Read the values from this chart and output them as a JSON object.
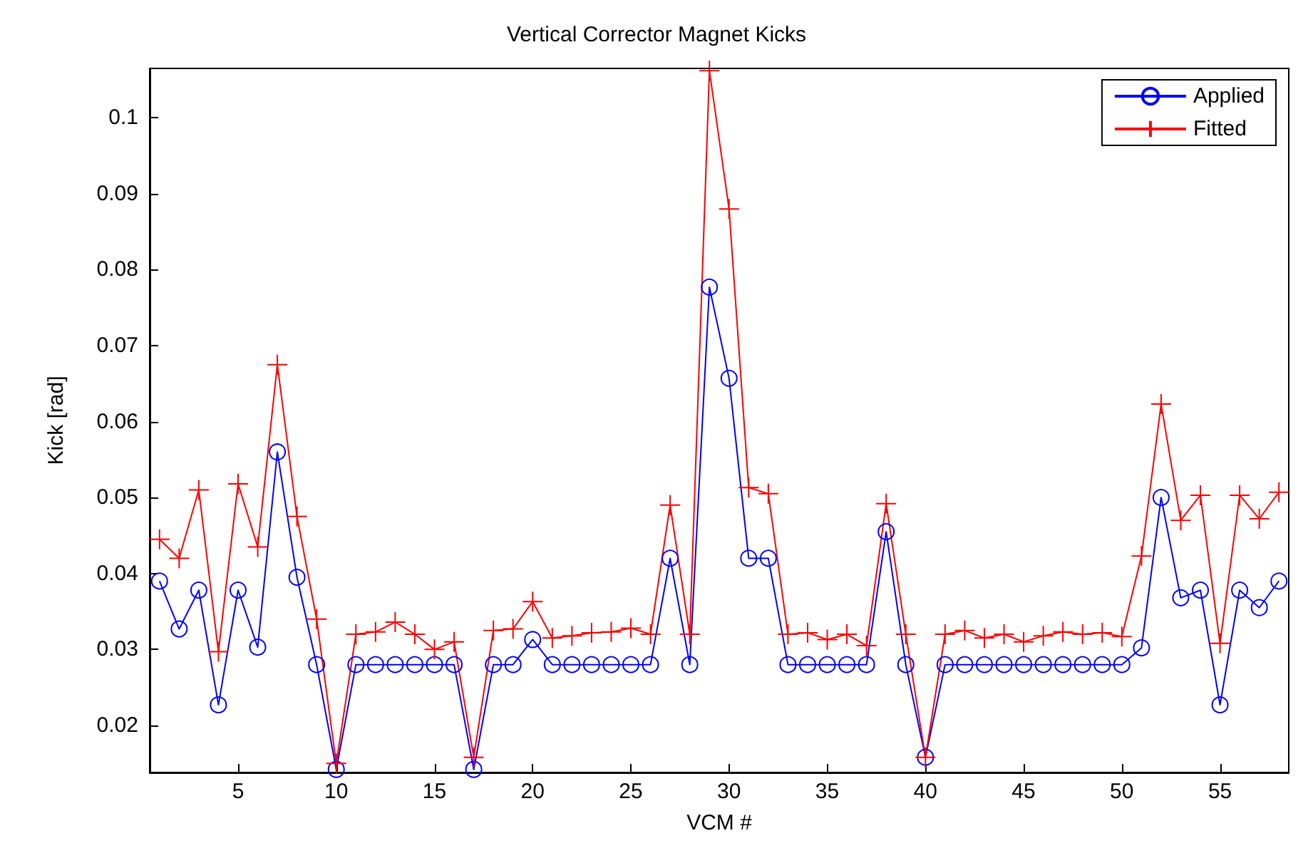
{
  "chart_data": {
    "type": "line",
    "title": "Vertical Corrector Magnet Kicks",
    "xlabel": "VCM #",
    "ylabel": "Kick [rad]",
    "x": [
      1,
      2,
      3,
      4,
      5,
      6,
      7,
      8,
      9,
      10,
      11,
      12,
      13,
      14,
      15,
      16,
      17,
      18,
      19,
      20,
      21,
      22,
      23,
      24,
      25,
      26,
      27,
      28,
      29,
      30,
      31,
      32,
      33,
      34,
      35,
      36,
      37,
      38,
      39,
      40,
      41,
      42,
      43,
      44,
      45,
      46,
      47,
      48,
      49,
      50,
      51,
      52,
      53,
      54,
      55,
      56,
      57,
      58
    ],
    "series": [
      {
        "name": "Applied",
        "color": "#0000ff",
        "marker": "circle",
        "values": [
          0.039,
          0.0327,
          0.0378,
          0.0227,
          0.0378,
          0.0303,
          0.056,
          0.0395,
          0.028,
          0.0142,
          0.028,
          0.028,
          0.028,
          0.028,
          0.028,
          0.028,
          0.0142,
          0.028,
          0.028,
          0.0313,
          0.028,
          0.028,
          0.028,
          0.028,
          0.028,
          0.028,
          0.042,
          0.028,
          0.0777,
          0.0657,
          0.042,
          0.042,
          0.028,
          0.028,
          0.028,
          0.028,
          0.028,
          0.0455,
          0.028,
          0.0158,
          0.028,
          0.028,
          0.028,
          0.028,
          0.028,
          0.028,
          0.028,
          0.028,
          0.028,
          0.028,
          0.0302,
          0.05,
          0.0368,
          0.0378,
          0.0227,
          0.0378,
          0.0355,
          0.039
        ]
      },
      {
        "name": "Fitted",
        "color": "#ff0000",
        "marker": "cross",
        "values": [
          0.0445,
          0.042,
          0.051,
          0.0297,
          0.0518,
          0.0435,
          0.0675,
          0.0475,
          0.034,
          0.015,
          0.032,
          0.0323,
          0.0336,
          0.032,
          0.03,
          0.031,
          0.0158,
          0.0325,
          0.0327,
          0.0363,
          0.0315,
          0.0318,
          0.0322,
          0.0323,
          0.0328,
          0.032,
          0.049,
          0.032,
          0.1062,
          0.088,
          0.0513,
          0.0505,
          0.032,
          0.0322,
          0.0313,
          0.032,
          0.0305,
          0.0492,
          0.032,
          0.0158,
          0.032,
          0.0325,
          0.0315,
          0.032,
          0.031,
          0.0318,
          0.0323,
          0.032,
          0.0322,
          0.0317,
          0.0423,
          0.0623,
          0.047,
          0.0503,
          0.0308,
          0.0503,
          0.0472,
          0.0507
        ]
      }
    ],
    "xlim": [
      0.5,
      58.5
    ],
    "ylim": [
      0.0138,
      0.1065
    ],
    "xticks": [
      5,
      10,
      15,
      20,
      25,
      30,
      35,
      40,
      45,
      50,
      55
    ],
    "yticks": [
      0.02,
      0.03,
      0.04,
      0.05,
      0.06,
      0.07,
      0.08,
      0.09,
      0.1
    ],
    "legend": "top right"
  }
}
